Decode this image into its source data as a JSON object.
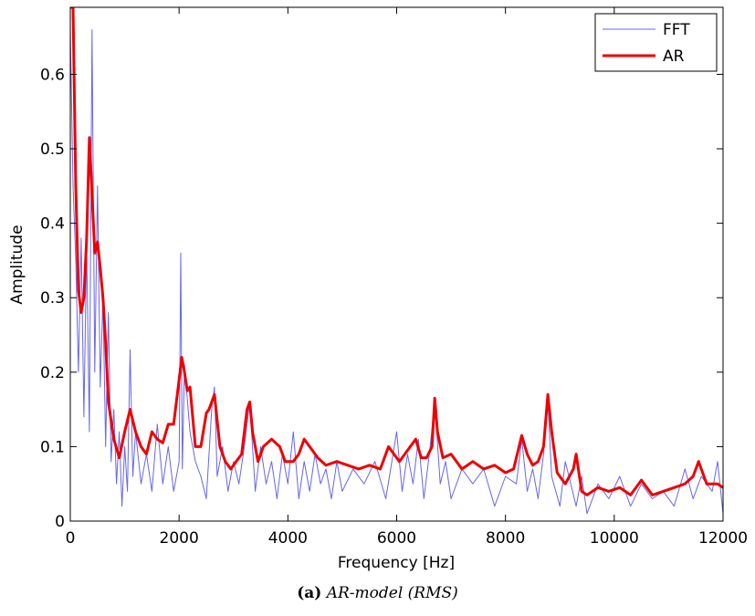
{
  "caption": {
    "prefix": "(a)",
    "text": "AR-model (RMS)"
  },
  "chart_data": {
    "type": "line",
    "xlabel": "Frequency [Hz]",
    "ylabel": "Amplitude",
    "xlim": [
      0,
      12000
    ],
    "ylim": [
      0,
      0.69
    ],
    "xticks": [
      0,
      2000,
      4000,
      6000,
      8000,
      10000,
      12000
    ],
    "xtick_labels": [
      "0",
      "2000",
      "4000",
      "6000",
      "8000",
      "10000",
      "12000"
    ],
    "yticks": [
      0,
      0.1,
      0.2,
      0.3,
      0.4,
      0.5,
      0.6
    ],
    "ytick_labels": [
      "0",
      "0.1",
      "0.2",
      "0.3",
      "0.4",
      "0.5",
      "0.6"
    ],
    "legend": {
      "position": "top-right"
    },
    "series": [
      {
        "name": "FFT",
        "color": "#6666ee",
        "style": "thin",
        "x": [
          0,
          50,
          100,
          150,
          200,
          250,
          300,
          350,
          400,
          450,
          500,
          550,
          600,
          650,
          700,
          750,
          800,
          850,
          900,
          950,
          1000,
          1050,
          1100,
          1150,
          1200,
          1300,
          1400,
          1500,
          1600,
          1700,
          1800,
          1900,
          2000,
          2030,
          2060,
          2100,
          2200,
          2300,
          2400,
          2500,
          2600,
          2650,
          2700,
          2800,
          2900,
          3000,
          3100,
          3200,
          3300,
          3400,
          3500,
          3600,
          3700,
          3800,
          3900,
          4000,
          4100,
          4200,
          4300,
          4400,
          4500,
          4600,
          4700,
          4800,
          4900,
          5000,
          5200,
          5400,
          5600,
          5800,
          6000,
          6100,
          6200,
          6300,
          6400,
          6500,
          6600,
          6700,
          6800,
          6900,
          7000,
          7200,
          7400,
          7600,
          7800,
          8000,
          8200,
          8300,
          8400,
          8500,
          8600,
          8700,
          8780,
          8850,
          9000,
          9100,
          9200,
          9300,
          9400,
          9500,
          9700,
          9900,
          10100,
          10300,
          10500,
          10700,
          10900,
          11100,
          11300,
          11450,
          11600,
          11800,
          11900,
          12000
        ],
        "y": [
          0.66,
          0.45,
          0.35,
          0.2,
          0.38,
          0.14,
          0.37,
          0.12,
          0.66,
          0.2,
          0.45,
          0.18,
          0.3,
          0.1,
          0.28,
          0.08,
          0.15,
          0.05,
          0.12,
          0.02,
          0.1,
          0.04,
          0.23,
          0.06,
          0.12,
          0.05,
          0.09,
          0.04,
          0.13,
          0.05,
          0.1,
          0.04,
          0.08,
          0.36,
          0.07,
          0.21,
          0.12,
          0.08,
          0.06,
          0.03,
          0.15,
          0.18,
          0.06,
          0.1,
          0.04,
          0.08,
          0.05,
          0.1,
          0.16,
          0.04,
          0.1,
          0.05,
          0.08,
          0.03,
          0.09,
          0.05,
          0.12,
          0.03,
          0.08,
          0.04,
          0.09,
          0.05,
          0.07,
          0.03,
          0.08,
          0.04,
          0.07,
          0.05,
          0.08,
          0.03,
          0.12,
          0.04,
          0.09,
          0.05,
          0.11,
          0.03,
          0.09,
          0.16,
          0.05,
          0.08,
          0.03,
          0.07,
          0.05,
          0.07,
          0.02,
          0.06,
          0.05,
          0.11,
          0.04,
          0.07,
          0.03,
          0.09,
          0.16,
          0.06,
          0.02,
          0.08,
          0.05,
          0.02,
          0.06,
          0.01,
          0.05,
          0.03,
          0.06,
          0.02,
          0.05,
          0.03,
          0.04,
          0.02,
          0.07,
          0.03,
          0.06,
          0.04,
          0.08,
          0.01
        ]
      },
      {
        "name": "AR",
        "color": "#ee0000",
        "style": "thick",
        "x": [
          0,
          50,
          100,
          150,
          200,
          250,
          300,
          350,
          400,
          450,
          500,
          550,
          600,
          650,
          700,
          800,
          900,
          1000,
          1100,
          1200,
          1300,
          1400,
          1500,
          1600,
          1700,
          1800,
          1900,
          2000,
          2050,
          2100,
          2150,
          2200,
          2300,
          2400,
          2500,
          2550,
          2650,
          2750,
          2850,
          2950,
          3050,
          3150,
          3250,
          3300,
          3350,
          3450,
          3550,
          3700,
          3850,
          3950,
          4100,
          4200,
          4300,
          4400,
          4550,
          4700,
          4900,
          5100,
          5300,
          5500,
          5700,
          5800,
          5850,
          5950,
          6050,
          6150,
          6250,
          6350,
          6450,
          6550,
          6650,
          6700,
          6750,
          6850,
          7000,
          7200,
          7400,
          7600,
          7800,
          8000,
          8150,
          8300,
          8400,
          8500,
          8600,
          8700,
          8780,
          8850,
          8950,
          9100,
          9250,
          9300,
          9400,
          9500,
          9700,
          9900,
          10100,
          10300,
          10500,
          10700,
          10900,
          11100,
          11300,
          11450,
          11550,
          11700,
          11900,
          12000
        ],
        "y": [
          0.69,
          0.69,
          0.45,
          0.31,
          0.28,
          0.3,
          0.38,
          0.515,
          0.44,
          0.36,
          0.375,
          0.34,
          0.3,
          0.24,
          0.16,
          0.11,
          0.085,
          0.12,
          0.15,
          0.12,
          0.1,
          0.09,
          0.12,
          0.11,
          0.105,
          0.13,
          0.13,
          0.19,
          0.22,
          0.2,
          0.175,
          0.18,
          0.1,
          0.1,
          0.145,
          0.15,
          0.17,
          0.1,
          0.08,
          0.07,
          0.08,
          0.09,
          0.15,
          0.16,
          0.12,
          0.08,
          0.1,
          0.11,
          0.1,
          0.08,
          0.08,
          0.09,
          0.11,
          0.1,
          0.085,
          0.075,
          0.08,
          0.075,
          0.07,
          0.075,
          0.07,
          0.09,
          0.1,
          0.09,
          0.08,
          0.09,
          0.1,
          0.11,
          0.085,
          0.085,
          0.1,
          0.165,
          0.12,
          0.085,
          0.09,
          0.07,
          0.08,
          0.07,
          0.075,
          0.065,
          0.07,
          0.115,
          0.09,
          0.075,
          0.08,
          0.1,
          0.17,
          0.12,
          0.065,
          0.05,
          0.07,
          0.09,
          0.04,
          0.035,
          0.045,
          0.04,
          0.045,
          0.035,
          0.055,
          0.035,
          0.04,
          0.045,
          0.05,
          0.06,
          0.08,
          0.05,
          0.05,
          0.045
        ]
      }
    ]
  }
}
